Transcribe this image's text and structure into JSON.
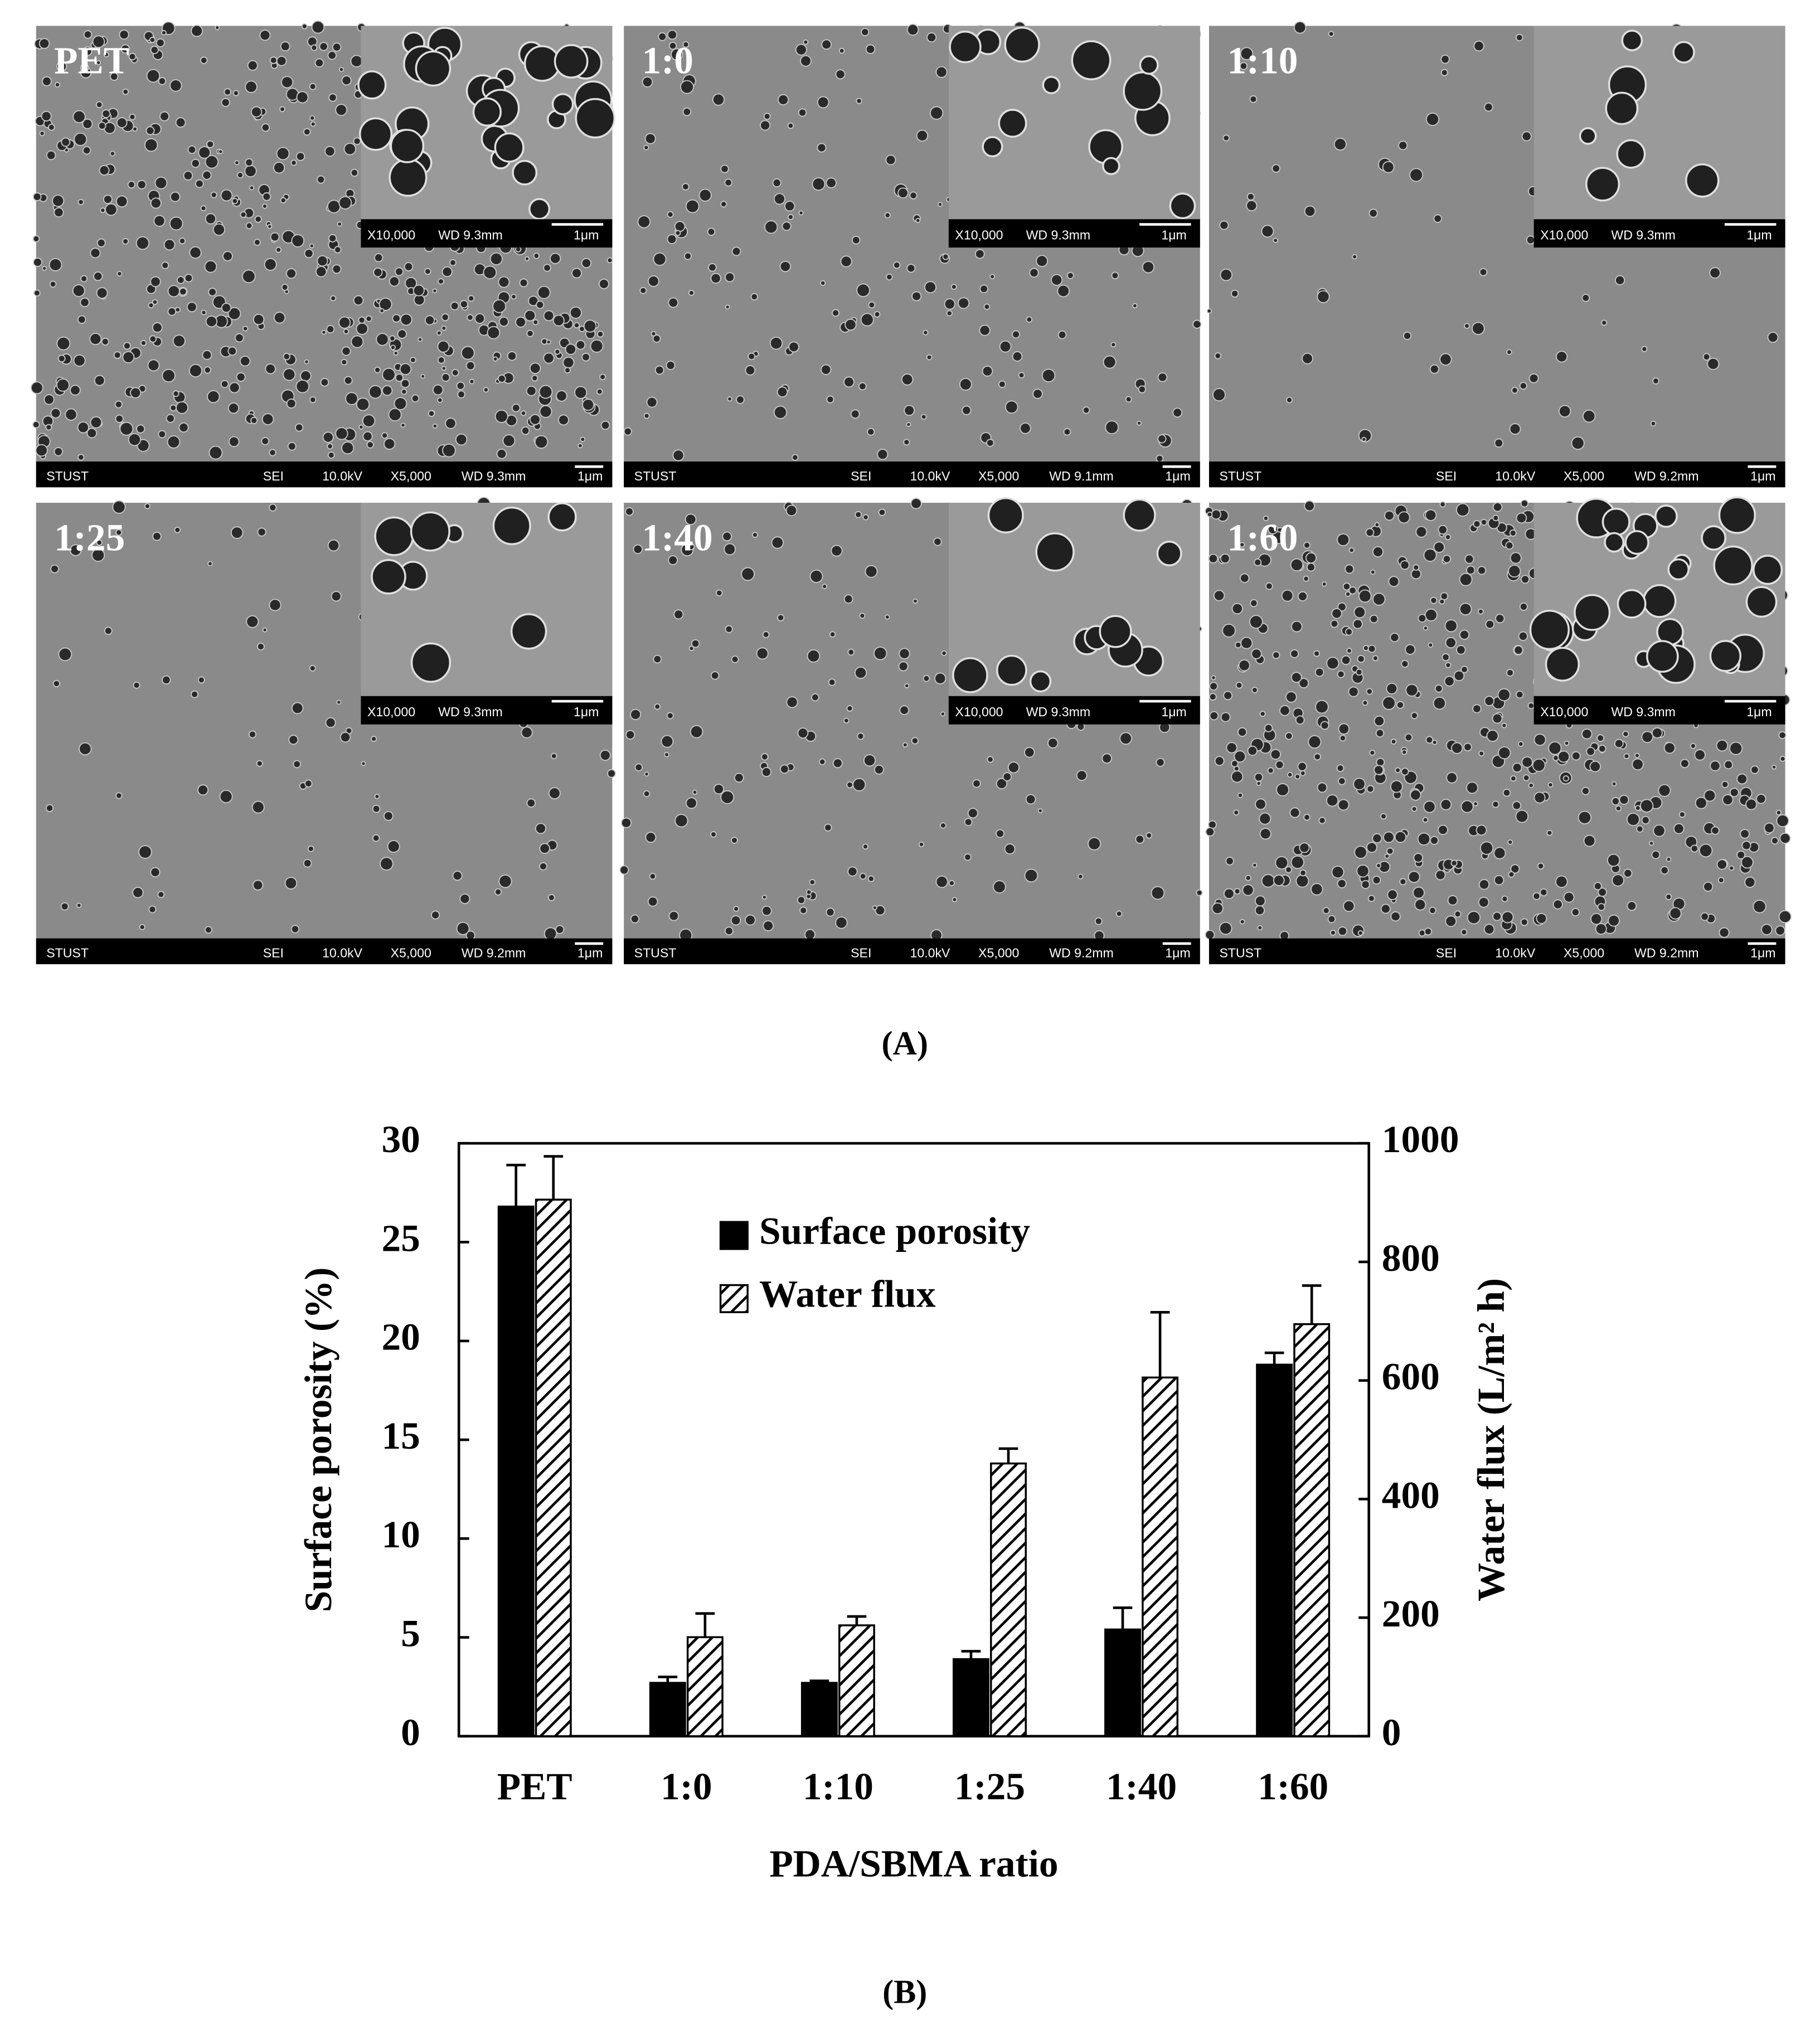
{
  "figure_a": {
    "panels": [
      {
        "label": "PET",
        "inset": [
          "X10,000",
          "WD 9.3mm",
          "1μm"
        ],
        "footer": [
          "STUST",
          "SEI",
          "10.0kV",
          "X5,000",
          "WD 9.3mm",
          "1μm"
        ]
      },
      {
        "label": "1:0",
        "inset": [
          "X10,000",
          "WD 9.3mm",
          "1μm"
        ],
        "footer": [
          "STUST",
          "SEI",
          "10.0kV",
          "X5,000",
          "WD 9.1mm",
          "1μm"
        ]
      },
      {
        "label": "1:10",
        "inset": [
          "X10,000",
          "WD 9.3mm",
          "1μm"
        ],
        "footer": [
          "STUST",
          "SEI",
          "10.0kV",
          "X5,000",
          "WD 9.2mm",
          "1μm"
        ]
      },
      {
        "label": "1:25",
        "inset": [
          "X10,000",
          "WD 9.3mm",
          "1μm"
        ],
        "footer": [
          "STUST",
          "SEI",
          "10.0kV",
          "X5,000",
          "WD 9.2mm",
          "1μm"
        ]
      },
      {
        "label": "1:40",
        "inset": [
          "X10,000",
          "WD 9.3mm",
          "1μm"
        ],
        "footer": [
          "STUST",
          "SEI",
          "10.0kV",
          "X5,000",
          "WD 9.2mm",
          "1μm"
        ]
      },
      {
        "label": "1:60",
        "inset": [
          "X10,000",
          "WD 9.3mm",
          "1μm"
        ],
        "footer": [
          "STUST",
          "SEI",
          "10.0kV",
          "X5,000",
          "WD 9.2mm",
          "1μm"
        ]
      }
    ],
    "caption": "(A)"
  },
  "chart_data": {
    "type": "bar",
    "categories": [
      "PET",
      "1:0",
      "1:10",
      "1:25",
      "1:40",
      "1:60"
    ],
    "series": [
      {
        "name": "Surface porosity",
        "color": "#000000",
        "values": [
          26.8,
          2.7,
          2.7,
          3.9,
          5.4,
          18.8
        ],
        "errors": [
          2.1,
          0.3,
          0.1,
          0.4,
          1.1,
          0.6
        ]
      },
      {
        "name": "Water flux",
        "color": "#ffffff",
        "hatch": true,
        "axis": "y2",
        "values": [
          905,
          167,
          187,
          460,
          605,
          695
        ],
        "errors": [
          73,
          40,
          15,
          25,
          110,
          65
        ]
      }
    ],
    "ylabel": "Surface porosity (%)",
    "y2label": "Water flux (L/m² h)",
    "xlabel": "PDA/SBMA ratio",
    "ylim": [
      0,
      30
    ],
    "yticks": [
      0,
      5,
      10,
      15,
      20,
      25,
      30
    ],
    "y2lim": [
      0,
      1000
    ],
    "y2ticks": [
      0,
      200,
      400,
      600,
      800,
      1000
    ],
    "legend": "upper center",
    "grid": false
  },
  "caption_b": "(B)"
}
